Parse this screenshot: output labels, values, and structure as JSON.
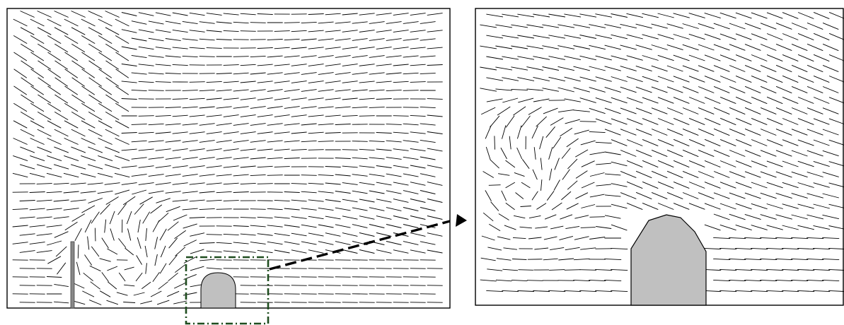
{
  "figure": {
    "panels": [
      {
        "id": "full-domain",
        "view": "flow-vectors"
      },
      {
        "id": "zoom-view",
        "view": "flow-vectors-magnified"
      }
    ],
    "colors": {
      "vector": "#000000",
      "obstacle_fill": "#c0c0c0",
      "frame": "#000000",
      "zoom_box": "#1f4d1f",
      "arrow": "#000000",
      "background": "#ffffff"
    },
    "icons": [
      "zoom-arrow-icon"
    ]
  }
}
